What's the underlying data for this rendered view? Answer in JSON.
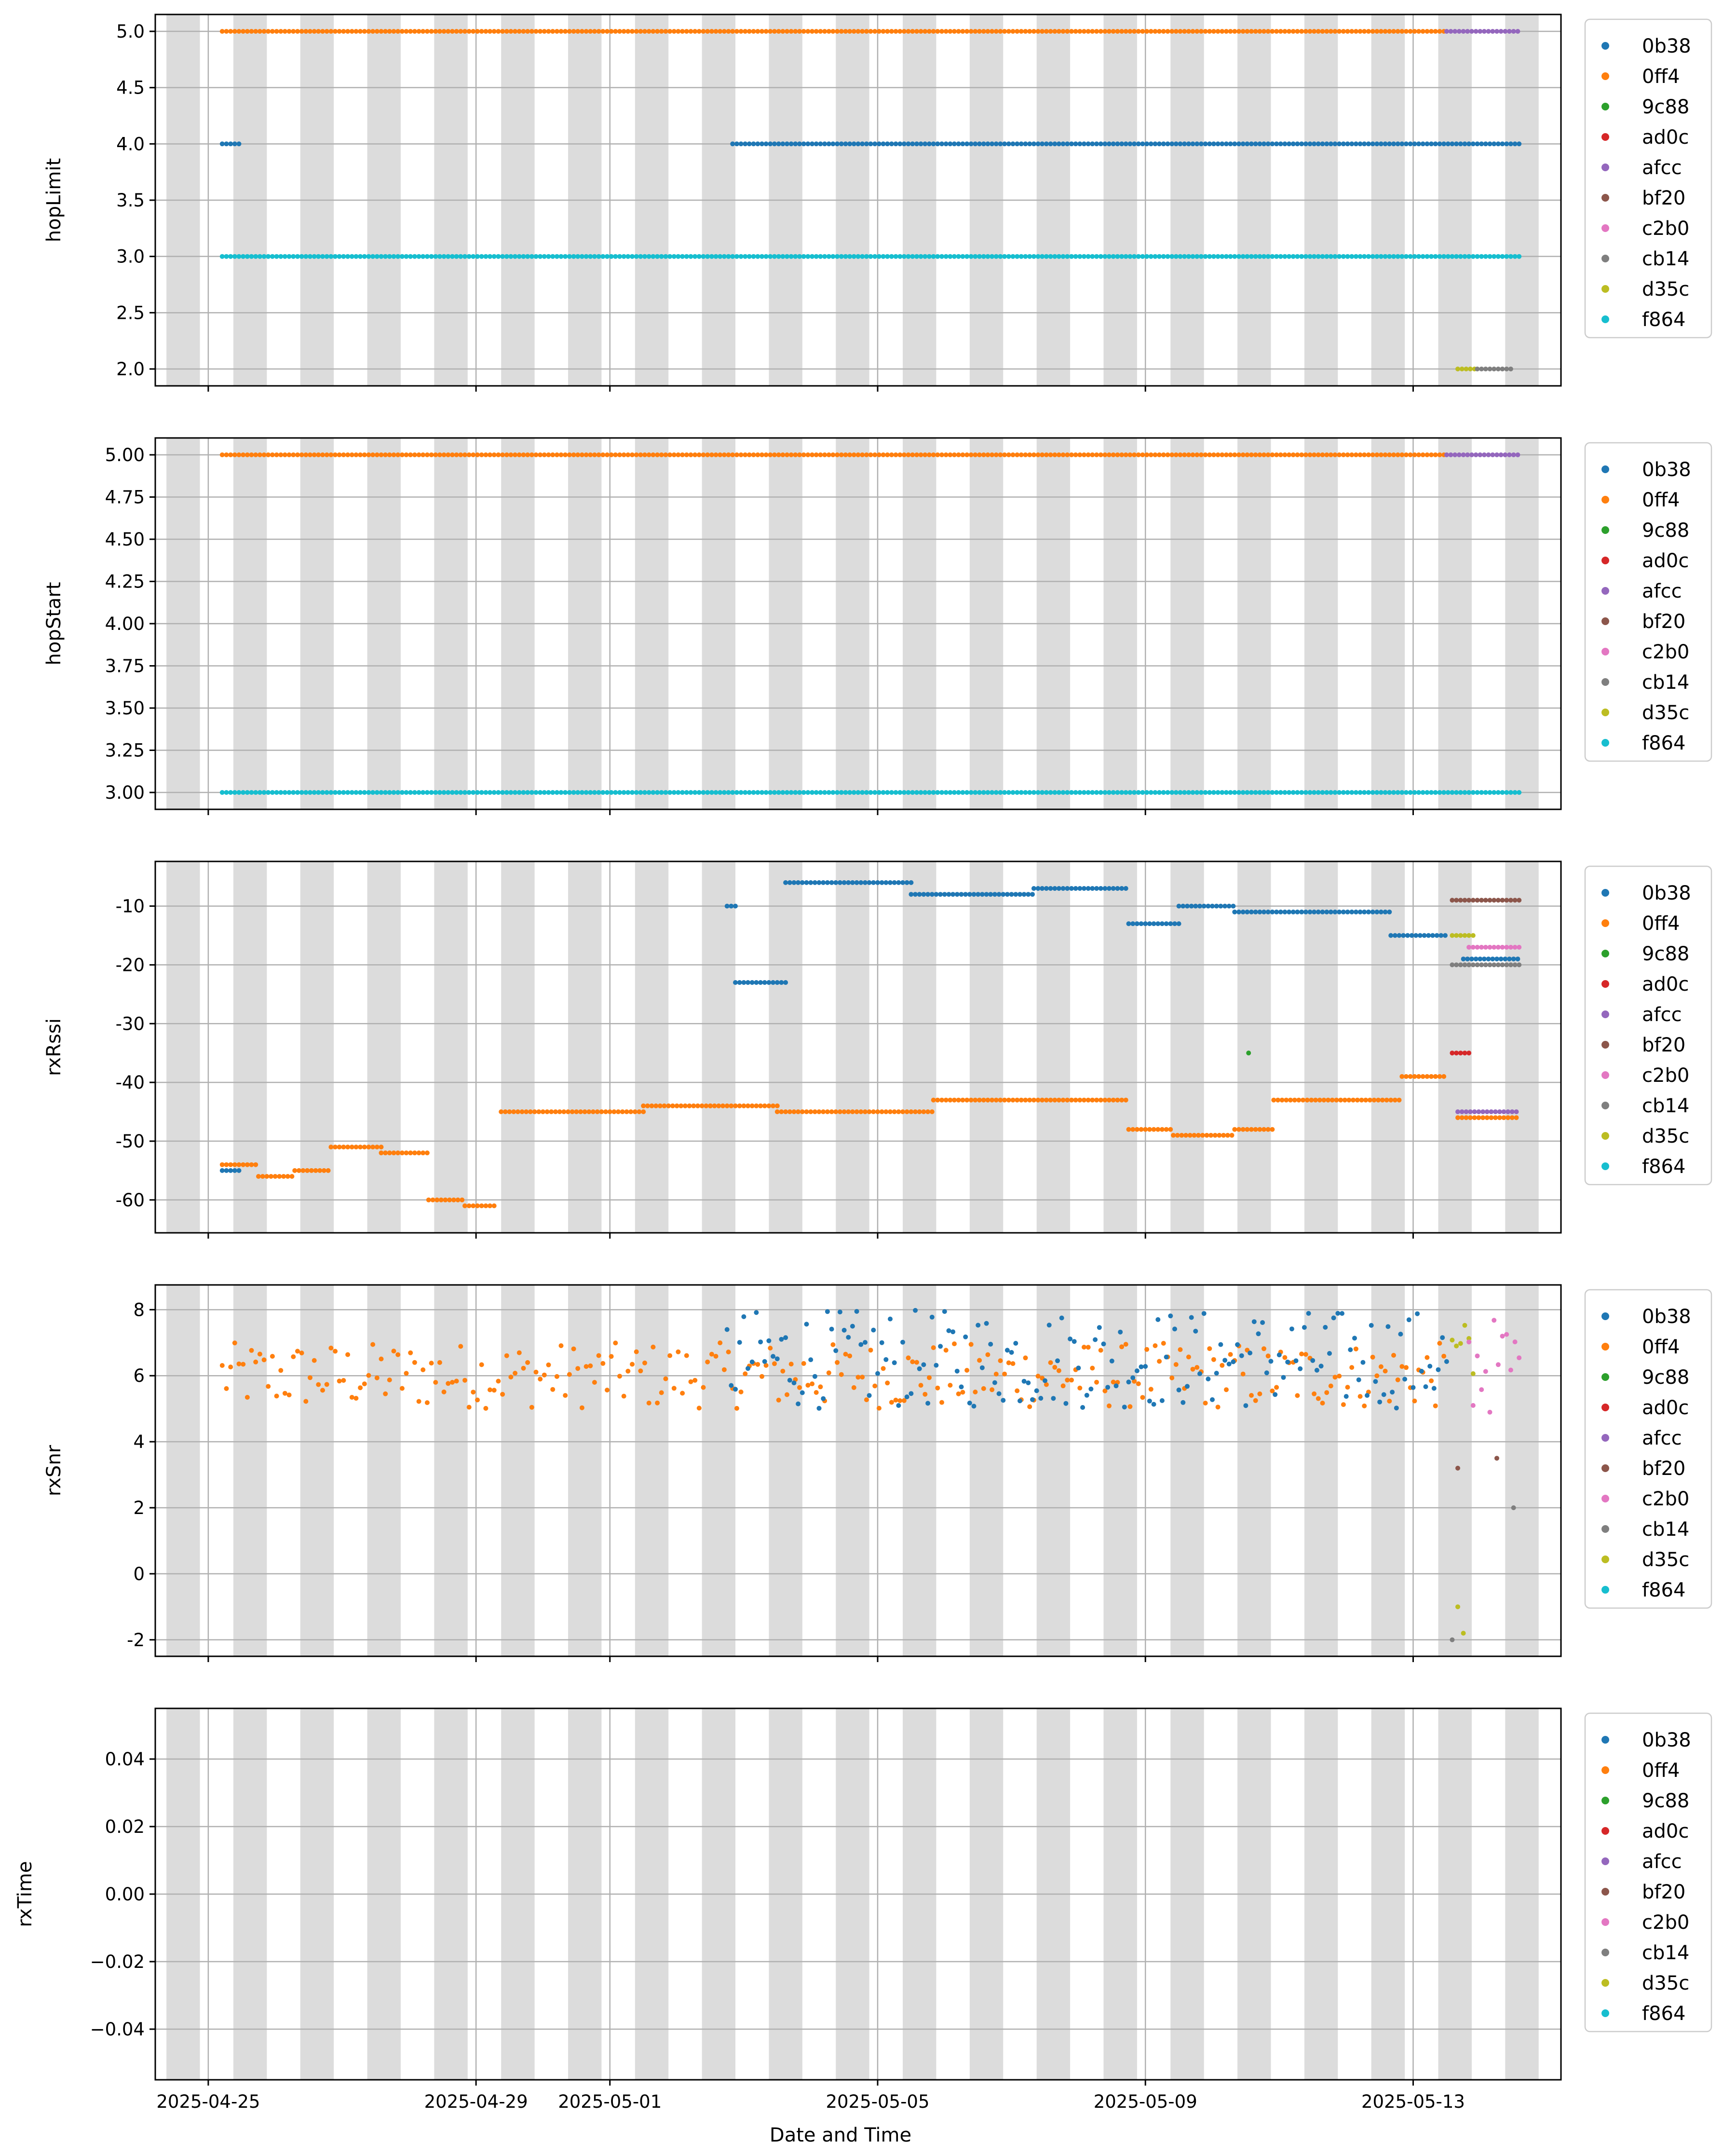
{
  "figure": {
    "xlabel": "Date and Time",
    "x_ticks": [
      "2025-04-25",
      "2025-04-29",
      "2025-05-01",
      "2025-05-05",
      "2025-05-09",
      "2025-05-13"
    ],
    "xlim": [
      "2025-04-24T05:00",
      "2025-05-15T05:00"
    ],
    "night_shading": "grey bands, 12 h each, every 24 h",
    "grid": true,
    "legend_placement": "outside-right"
  },
  "legend": [
    {
      "name": "0b38",
      "color": "#1f77b4"
    },
    {
      "name": "0ff4",
      "color": "#ff7f0e"
    },
    {
      "name": "9c88",
      "color": "#2ca02c"
    },
    {
      "name": "ad0c",
      "color": "#d62728"
    },
    {
      "name": "afcc",
      "color": "#9467bd"
    },
    {
      "name": "bf20",
      "color": "#8c564b"
    },
    {
      "name": "c2b0",
      "color": "#e377c2"
    },
    {
      "name": "cb14",
      "color": "#7f7f7f"
    },
    {
      "name": "d35c",
      "color": "#bcbd22"
    },
    {
      "name": "f864",
      "color": "#17becf"
    }
  ],
  "chart_data": [
    {
      "type": "scatter",
      "ylabel": "hopLimit",
      "ylim": [
        1.85,
        5.15
      ],
      "y_ticks": [
        "2.0",
        "2.5",
        "3.0",
        "3.5",
        "4.0",
        "4.5",
        "5.0"
      ],
      "series": [
        {
          "name": "0ff4",
          "segments": [
            {
              "x": [
                "2025-04-25T05:00",
                "2025-05-13T12:00"
              ],
              "y": 5.0
            }
          ]
        },
        {
          "name": "afcc",
          "segments": [
            {
              "x": [
                "2025-05-13T12:00",
                "2025-05-14T14:00"
              ],
              "y": 5.0
            }
          ]
        },
        {
          "name": "f864",
          "segments": [
            {
              "x": [
                "2025-04-25T05:00",
                "2025-05-14T14:00"
              ],
              "y": 3.0
            }
          ]
        },
        {
          "name": "0b38",
          "segments": [
            {
              "x": [
                "2025-04-25T05:00",
                "2025-04-25T12:00"
              ],
              "y": 4.0
            },
            {
              "x": [
                "2025-05-02T20:00",
                "2025-05-14T14:00"
              ],
              "y": 4.0
            }
          ]
        },
        {
          "name": "d35c",
          "segments": [
            {
              "x": [
                "2025-05-13T16:00",
                "2025-05-13T23:00"
              ],
              "y": 2.0
            }
          ]
        },
        {
          "name": "cb14",
          "segments": [
            {
              "x": [
                "2025-05-13T23:00",
                "2025-05-14T12:00"
              ],
              "y": 2.0
            }
          ]
        }
      ]
    },
    {
      "type": "scatter",
      "ylabel": "hopStart",
      "ylim": [
        2.9,
        5.1
      ],
      "y_ticks": [
        "3.00",
        "3.25",
        "3.50",
        "3.75",
        "4.00",
        "4.25",
        "4.50",
        "4.75",
        "5.00"
      ],
      "series": [
        {
          "name": "0ff4",
          "segments": [
            {
              "x": [
                "2025-04-25T05:00",
                "2025-05-13T12:00"
              ],
              "y": 5.0
            }
          ]
        },
        {
          "name": "afcc",
          "segments": [
            {
              "x": [
                "2025-05-13T12:00",
                "2025-05-14T14:00"
              ],
              "y": 5.0
            }
          ]
        },
        {
          "name": "f864",
          "segments": [
            {
              "x": [
                "2025-04-25T05:00",
                "2025-05-14T14:00"
              ],
              "y": 3.0
            }
          ]
        }
      ]
    },
    {
      "type": "scatter",
      "ylabel": "rxRssi",
      "ylim": [
        -65.6,
        -2.4
      ],
      "y_ticks": [
        "-60",
        "-50",
        "-40",
        "-30",
        "-20",
        "-10"
      ],
      "series": [
        {
          "name": "0ff4",
          "segments": [
            {
              "x": [
                "2025-04-25T05:00",
                "2025-04-25T18:00"
              ],
              "y": -54
            },
            {
              "x": [
                "2025-04-25T18:00",
                "2025-04-26T07:00"
              ],
              "y": -56
            },
            {
              "x": [
                "2025-04-26T07:00",
                "2025-04-26T20:00"
              ],
              "y": -55
            },
            {
              "x": [
                "2025-04-26T20:00",
                "2025-04-27T14:00"
              ],
              "y": -51
            },
            {
              "x": [
                "2025-04-27T14:00",
                "2025-04-28T07:00"
              ],
              "y": -52
            },
            {
              "x": [
                "2025-04-28T07:00",
                "2025-04-28T20:00"
              ],
              "y": -60
            },
            {
              "x": [
                "2025-04-28T20:00",
                "2025-04-29T07:00"
              ],
              "y": -61
            },
            {
              "x": [
                "2025-04-29T09:00",
                "2025-05-01T12:00"
              ],
              "y": -45
            },
            {
              "x": [
                "2025-05-01T12:00",
                "2025-05-02T12:00"
              ],
              "y": -44
            },
            {
              "x": [
                "2025-05-02T12:00",
                "2025-05-03T12:00"
              ],
              "y": -44
            },
            {
              "x": [
                "2025-05-03T12:00",
                "2025-05-05T20:00"
              ],
              "y": -45
            },
            {
              "x": [
                "2025-05-05T20:00",
                "2025-05-08T18:00"
              ],
              "y": -43
            },
            {
              "x": [
                "2025-05-08T18:00",
                "2025-05-09T10:00"
              ],
              "y": -48
            },
            {
              "x": [
                "2025-05-09T10:00",
                "2025-05-10T08:00"
              ],
              "y": -49
            },
            {
              "x": [
                "2025-05-10T08:00",
                "2025-05-10T22:00"
              ],
              "y": -48
            },
            {
              "x": [
                "2025-05-10T22:00",
                "2025-05-12T20:00"
              ],
              "y": -43
            },
            {
              "x": [
                "2025-05-12T20:00",
                "2025-05-13T12:00"
              ],
              "y": -39
            },
            {
              "x": [
                "2025-05-13T16:00",
                "2025-05-14T14:00"
              ],
              "y": -46
            }
          ]
        },
        {
          "name": "0b38",
          "segments": [
            {
              "x": [
                "2025-04-25T05:00",
                "2025-04-25T12:00"
              ],
              "y": -55
            },
            {
              "x": [
                "2025-05-02T18:00",
                "2025-05-02T21:00"
              ],
              "y": -10
            },
            {
              "x": [
                "2025-05-02T21:00",
                "2025-05-03T15:00"
              ],
              "y": -23
            },
            {
              "x": [
                "2025-05-03T15:00",
                "2025-05-05T12:00"
              ],
              "y": -6
            },
            {
              "x": [
                "2025-05-05T12:00",
                "2025-05-07T08:00"
              ],
              "y": -8
            },
            {
              "x": [
                "2025-05-07T08:00",
                "2025-05-08T18:00"
              ],
              "y": -7
            },
            {
              "x": [
                "2025-05-08T18:00",
                "2025-05-09T12:00"
              ],
              "y": -13
            },
            {
              "x": [
                "2025-05-09T12:00",
                "2025-05-10T08:00"
              ],
              "y": -10
            },
            {
              "x": [
                "2025-05-10T08:00",
                "2025-05-12T16:00"
              ],
              "y": -11
            },
            {
              "x": [
                "2025-05-12T16:00",
                "2025-05-13T12:00"
              ],
              "y": -15
            },
            {
              "x": [
                "2025-05-13T18:00",
                "2025-05-14T14:00"
              ],
              "y": -19
            }
          ]
        },
        {
          "name": "bf20",
          "segments": [
            {
              "x": [
                "2025-05-13T14:00",
                "2025-05-14T14:00"
              ],
              "y": -9
            }
          ]
        },
        {
          "name": "c2b0",
          "segments": [
            {
              "x": [
                "2025-05-13T20:00",
                "2025-05-14T14:00"
              ],
              "y": -17
            }
          ]
        },
        {
          "name": "ad0c",
          "segments": [
            {
              "x": [
                "2025-05-13T14:00",
                "2025-05-13T20:00"
              ],
              "y": -35
            }
          ]
        },
        {
          "name": "afcc",
          "segments": [
            {
              "x": [
                "2025-05-13T16:00",
                "2025-05-14T14:00"
              ],
              "y": -45
            }
          ]
        },
        {
          "name": "d35c",
          "segments": [
            {
              "x": [
                "2025-05-13T14:00",
                "2025-05-13T22:00"
              ],
              "y": -15
            }
          ]
        },
        {
          "name": "cb14",
          "segments": [
            {
              "x": [
                "2025-05-13T14:00",
                "2025-05-14T14:00"
              ],
              "y": -20
            }
          ]
        },
        {
          "name": "9c88",
          "points": [
            {
              "x": "2025-05-10T13:00",
              "y": -35
            }
          ]
        }
      ]
    },
    {
      "type": "scatter",
      "ylabel": "rxSnr",
      "ylim": [
        -2.5,
        8.75
      ],
      "y_ticks": [
        "-2",
        "0",
        "2",
        "4",
        "6",
        "8"
      ],
      "series": [
        {
          "name": "0ff4",
          "segments": [
            {
              "x": [
                "2025-04-25T05:00",
                "2025-05-13T12:00"
              ],
              "y": 6.0,
              "spread": 1.0
            }
          ]
        },
        {
          "name": "0b38",
          "segments": [
            {
              "x": [
                "2025-05-02T18:00",
                "2025-05-13T12:00"
              ],
              "y": 6.5,
              "spread": 1.5
            }
          ]
        },
        {
          "name": "d35c",
          "segments": [
            {
              "x": [
                "2025-05-13T14:00",
                "2025-05-13T22:00"
              ],
              "y": 6.5,
              "spread": 1.2
            }
          ]
        },
        {
          "name": "c2b0",
          "segments": [
            {
              "x": [
                "2025-05-13T20:00",
                "2025-05-14T14:00"
              ],
              "y": 6.3,
              "spread": 1.5
            }
          ]
        },
        {
          "name": "bf20",
          "points": [
            {
              "x": "2025-05-13T16:00",
              "y": 3.2
            },
            {
              "x": "2025-05-14T06:00",
              "y": 3.5
            }
          ]
        },
        {
          "name": "cb14",
          "points": [
            {
              "x": "2025-05-13T14:00",
              "y": -2.0
            },
            {
              "x": "2025-05-14T12:00",
              "y": 2.0
            }
          ]
        },
        {
          "name": "d35c",
          "points": [
            {
              "x": "2025-05-13T16:00",
              "y": -1.0
            },
            {
              "x": "2025-05-13T18:00",
              "y": -1.8
            }
          ]
        }
      ]
    },
    {
      "type": "scatter",
      "ylabel": "rxTime",
      "ylim": [
        -0.055,
        0.055
      ],
      "y_ticks": [
        "−0.04",
        "−0.02",
        "0.00",
        "0.02",
        "0.04"
      ],
      "series": []
    }
  ]
}
